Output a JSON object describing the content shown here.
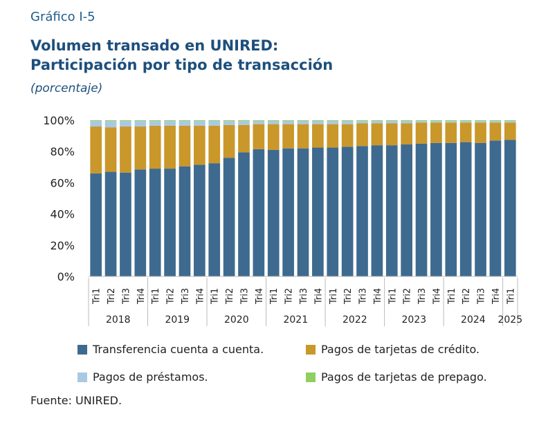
{
  "figure_label": "Gráfico I-5",
  "title_line1": "Volumen transado en UNIRED:",
  "title_line2": "Participación por tipo de transacción",
  "subtitle": "(porcentaje)",
  "source": "Fuente: UNIRED.",
  "colors": {
    "transferencia": "#3f6a8f",
    "credito": "#c9972a",
    "prestamos": "#a9c9e3",
    "prepago": "#8fcf5f"
  },
  "chart_data": {
    "type": "bar",
    "stacked": true,
    "ylim": [
      0,
      100
    ],
    "yticks": [
      "0%",
      "20%",
      "40%",
      "60%",
      "80%",
      "100%"
    ],
    "ytick_values": [
      0,
      20,
      40,
      60,
      80,
      100
    ],
    "grid": false,
    "legend_position": "bottom",
    "categories": [
      "Tri1",
      "Tri2",
      "Tri3",
      "Tri4",
      "Tri1",
      "Tri2",
      "Tri3",
      "Tri4",
      "Tri1",
      "Tri2",
      "Tri3",
      "Tri4",
      "Tri1",
      "Tri2",
      "Tri3",
      "Tri4",
      "Tri1",
      "Tri2",
      "Tri3",
      "Tri4",
      "Tri1",
      "Tri2",
      "Tri3",
      "Tri4",
      "Tri1",
      "Tri2",
      "Tri3",
      "Tri4",
      "Tri1"
    ],
    "years": [
      {
        "label": "2018",
        "count": 4
      },
      {
        "label": "2019",
        "count": 4
      },
      {
        "label": "2020",
        "count": 4
      },
      {
        "label": "2021",
        "count": 4
      },
      {
        "label": "2022",
        "count": 4
      },
      {
        "label": "2023",
        "count": 4
      },
      {
        "label": "2024",
        "count": 4
      },
      {
        "label": "2025",
        "count": 1
      }
    ],
    "series": [
      {
        "name": "Transferencia cuenta a cuenta.",
        "key": "transferencia",
        "values": [
          66,
          67,
          66.5,
          68.5,
          69,
          69,
          70.5,
          71.5,
          72.5,
          76,
          79.5,
          81.5,
          81,
          82,
          82,
          82.5,
          82.5,
          83,
          83.5,
          84,
          84,
          84.5,
          85,
          85.5,
          85.5,
          86,
          85.5,
          87,
          87.5
        ]
      },
      {
        "name": "Pagos de tarjetas de crédito.",
        "key": "credito",
        "values": [
          30,
          28.5,
          29.5,
          27.5,
          27.5,
          27.5,
          26,
          25,
          24,
          21,
          17.5,
          16,
          16.5,
          15.5,
          15.5,
          15,
          15,
          14.5,
          14.5,
          14,
          14,
          13.5,
          13.5,
          13,
          13,
          12.5,
          13,
          11.5,
          11
        ]
      },
      {
        "name": "Pagos de préstamos.",
        "key": "prestamos",
        "values": [
          3.5,
          4,
          3.5,
          3.5,
          3,
          3,
          3,
          3,
          3,
          2.5,
          2.5,
          2,
          2,
          2,
          2,
          2,
          2,
          2,
          1.5,
          1.5,
          1.5,
          1.5,
          1,
          1,
          1,
          1,
          1,
          1,
          1
        ]
      },
      {
        "name": "Pagos de tarjetas de prepago.",
        "key": "prepago",
        "values": [
          0.5,
          0.5,
          0.5,
          0.5,
          0.5,
          0.5,
          0.5,
          0.5,
          0.5,
          0.5,
          0.5,
          0.5,
          0.5,
          0.5,
          0.5,
          0.5,
          0.5,
          0.5,
          0.5,
          0.5,
          0.5,
          0.5,
          0.5,
          0.5,
          0.5,
          0.5,
          0.5,
          0.5,
          0.5
        ]
      }
    ]
  }
}
